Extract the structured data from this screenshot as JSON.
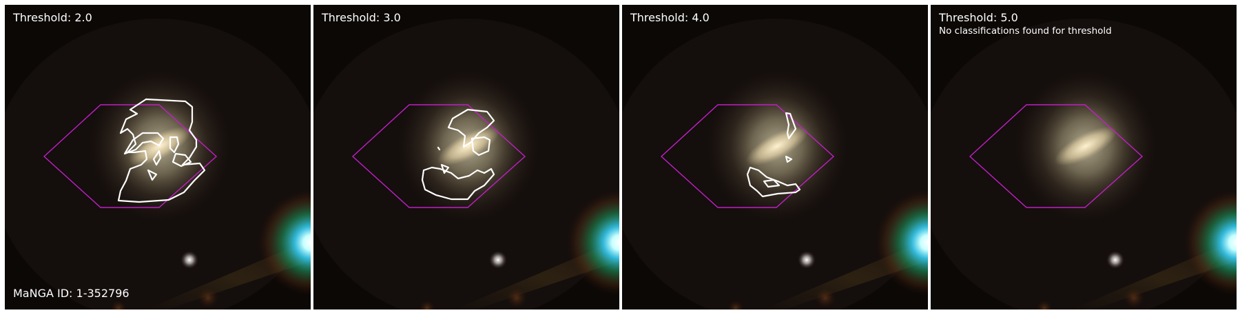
{
  "manga_id_label": "MaNGA ID: 1-352796",
  "colors": {
    "hexagon": "#c21fc8",
    "contour": "#ffffff",
    "text": "#ffffff"
  },
  "panels": [
    {
      "threshold_label": "Threshold: 2.0",
      "note": ""
    },
    {
      "threshold_label": "Threshold: 3.0",
      "note": ""
    },
    {
      "threshold_label": "Threshold: 4.0",
      "note": ""
    },
    {
      "threshold_label": "Threshold: 5.0",
      "note": "No classifications found for threshold"
    }
  ]
}
